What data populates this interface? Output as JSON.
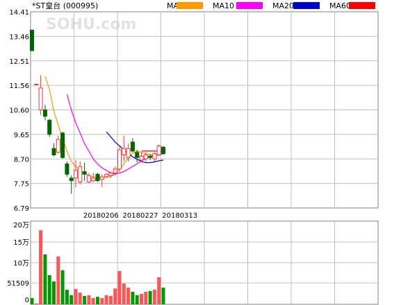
{
  "header": {
    "stock_label": "*ST皇台 (000995)",
    "watermark": "SOHU.com"
  },
  "legend": [
    {
      "name": "MA5",
      "color": "#FF9900"
    },
    {
      "name": "MA10",
      "color": "#FF00FF"
    },
    {
      "name": "MA20",
      "color": "#0000CC"
    },
    {
      "name": "MA60",
      "color": "#FF0000"
    }
  ],
  "colors": {
    "up": "#FF3333",
    "down": "#006600",
    "volume_up": "#FF5555",
    "volume_down": "#009900",
    "grid": "#C0C0C0",
    "frame": "#808080"
  },
  "chart_data": [
    {
      "type": "candlestick",
      "title": "*ST皇台 (000995)",
      "ylim": [
        6.79,
        14.41
      ],
      "y_ticks": [
        "14.41",
        "13.46",
        "12.51",
        "11.56",
        "10.60",
        "9.65",
        "8.70",
        "7.75",
        "6.79"
      ],
      "x_tick_labels": [
        {
          "index": 11,
          "label": "20180206"
        },
        {
          "index": 20,
          "label": "20180227"
        },
        {
          "index": 29,
          "label": "20180313"
        }
      ],
      "candles": [
        {
          "o": 13.7,
          "h": 13.7,
          "l": 12.9,
          "c": 12.9
        },
        {
          "o": 11.6,
          "h": 11.6,
          "l": 11.6,
          "c": 11.6
        },
        {
          "o": 10.6,
          "h": 11.95,
          "l": 10.4,
          "c": 11.45
        },
        {
          "o": 10.6,
          "h": 10.8,
          "l": 10.2,
          "c": 10.35
        },
        {
          "o": 10.2,
          "h": 10.25,
          "l": 9.55,
          "c": 9.65
        },
        {
          "o": 9.1,
          "h": 9.3,
          "l": 8.8,
          "c": 8.85
        },
        {
          "o": 8.95,
          "h": 9.6,
          "l": 8.9,
          "c": 9.45
        },
        {
          "o": 9.7,
          "h": 9.75,
          "l": 8.7,
          "c": 8.75
        },
        {
          "o": 8.5,
          "h": 8.6,
          "l": 8.0,
          "c": 8.1
        },
        {
          "o": 7.95,
          "h": 8.05,
          "l": 7.35,
          "c": 7.85
        },
        {
          "o": 7.95,
          "h": 8.65,
          "l": 7.6,
          "c": 8.25
        },
        {
          "o": 7.8,
          "h": 8.6,
          "l": 7.7,
          "c": 8.4
        },
        {
          "o": 8.2,
          "h": 8.55,
          "l": 7.85,
          "c": 8.1
        },
        {
          "o": 7.8,
          "h": 8.15,
          "l": 7.75,
          "c": 8.05
        },
        {
          "o": 7.85,
          "h": 8.15,
          "l": 7.8,
          "c": 7.95
        },
        {
          "o": 8.1,
          "h": 8.15,
          "l": 7.8,
          "c": 7.85
        },
        {
          "o": 7.9,
          "h": 8.1,
          "l": 7.6,
          "c": 8.0
        },
        {
          "o": 8.0,
          "h": 8.15,
          "l": 7.95,
          "c": 8.1
        },
        {
          "o": 8.05,
          "h": 8.2,
          "l": 7.95,
          "c": 8.15
        },
        {
          "o": 8.15,
          "h": 8.4,
          "l": 8.05,
          "c": 8.3
        },
        {
          "o": 8.3,
          "h": 9.2,
          "l": 8.2,
          "c": 9.05
        },
        {
          "o": 8.85,
          "h": 9.6,
          "l": 8.6,
          "c": 9.1
        },
        {
          "o": 8.75,
          "h": 9.3,
          "l": 8.6,
          "c": 9.1
        },
        {
          "o": 9.35,
          "h": 9.5,
          "l": 8.95,
          "c": 9.0
        },
        {
          "o": 8.95,
          "h": 9.05,
          "l": 8.55,
          "c": 8.75
        },
        {
          "o": 8.65,
          "h": 8.95,
          "l": 8.55,
          "c": 8.8
        },
        {
          "o": 8.7,
          "h": 8.95,
          "l": 8.6,
          "c": 8.85
        },
        {
          "o": 8.8,
          "h": 8.9,
          "l": 8.65,
          "c": 8.75
        },
        {
          "o": 8.7,
          "h": 8.95,
          "l": 8.6,
          "c": 8.9
        },
        {
          "o": 8.85,
          "h": 9.25,
          "l": 8.8,
          "c": 9.2
        },
        {
          "o": 9.15,
          "h": 9.2,
          "l": 8.85,
          "c": 8.9
        }
      ],
      "ma": [
        {
          "name": "MA5",
          "values": [
            null,
            null,
            null,
            11.9,
            11.4,
            10.55,
            10.0,
            9.5,
            9.0,
            8.6,
            8.4,
            8.2,
            8.15,
            8.05,
            8.0,
            8.0,
            7.98,
            7.98,
            8.02,
            8.1,
            8.28,
            8.5,
            8.75,
            8.92,
            9.0,
            8.95,
            8.9,
            8.85,
            8.83,
            8.85,
            8.9
          ]
        },
        {
          "name": "MA10",
          "values": [
            null,
            null,
            null,
            null,
            null,
            null,
            null,
            null,
            11.2,
            10.6,
            10.1,
            9.7,
            9.3,
            9.0,
            8.7,
            8.5,
            8.35,
            8.25,
            8.15,
            8.1,
            8.15,
            8.2,
            8.3,
            8.4,
            8.5,
            8.62,
            8.7,
            8.78,
            8.85,
            8.88,
            8.9
          ]
        },
        {
          "name": "MA20",
          "values": [
            null,
            null,
            null,
            null,
            null,
            null,
            null,
            null,
            null,
            null,
            null,
            null,
            null,
            null,
            null,
            null,
            null,
            9.75,
            9.55,
            9.35,
            9.2,
            9.05,
            8.9,
            8.78,
            8.68,
            8.6,
            8.55,
            8.55,
            8.58,
            8.62,
            8.65
          ]
        },
        {
          "name": "MA60",
          "values": [
            null,
            null,
            null,
            null,
            null,
            null,
            null,
            null,
            null,
            null,
            null,
            null,
            null,
            null,
            null,
            null,
            null,
            null,
            null,
            null,
            null,
            null,
            null,
            null,
            null,
            9.0,
            9.0,
            9.0,
            9.0,
            9.0,
            9.0
          ]
        }
      ]
    },
    {
      "type": "bar",
      "title": "volume",
      "ylim": [
        0,
        200000
      ],
      "y_ticks": [
        {
          "value": 200000,
          "label": "20万"
        },
        {
          "value": 150000,
          "label": "15万"
        },
        {
          "value": 100000,
          "label": "10万"
        },
        {
          "value": 51509,
          "label": "51509"
        },
        {
          "value": 0,
          "label": "0"
        }
      ],
      "values": [
        15000,
        2000,
        178000,
        120000,
        70000,
        55000,
        115000,
        82000,
        35000,
        22000,
        37000,
        28000,
        20000,
        22000,
        15000,
        18000,
        15000,
        22000,
        20000,
        38000,
        80000,
        50000,
        40000,
        30000,
        22000,
        25000,
        30000,
        32000,
        35000,
        65000,
        40000
      ],
      "up": [
        false,
        true,
        true,
        false,
        false,
        false,
        true,
        false,
        false,
        false,
        true,
        true,
        false,
        true,
        true,
        false,
        true,
        true,
        true,
        true,
        true,
        true,
        true,
        false,
        false,
        true,
        true,
        false,
        true,
        true,
        false
      ]
    }
  ]
}
